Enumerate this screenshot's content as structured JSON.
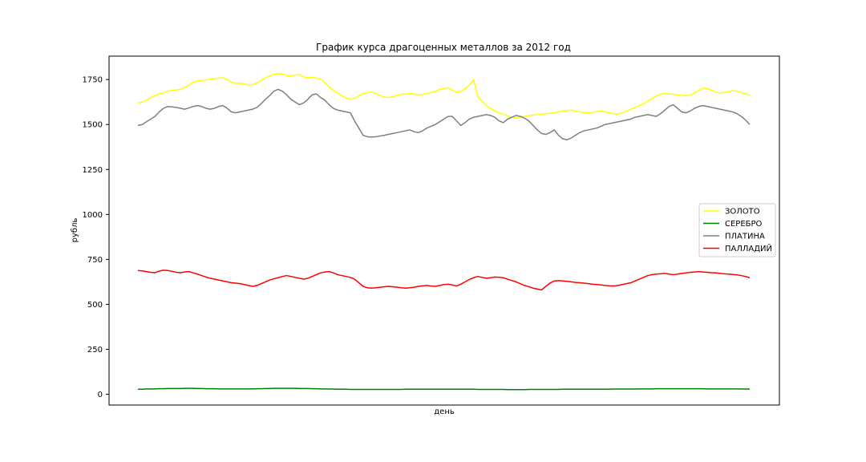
{
  "chart_data": {
    "type": "line",
    "title": "График курса драгоценных металлов за 2012 год",
    "xlabel": "день",
    "ylabel": "рубль",
    "ylim": [
      -60,
      1880
    ],
    "yticks": [
      0,
      250,
      500,
      750,
      1000,
      1250,
      1500,
      1750
    ],
    "xtick_labels_shown": false,
    "legend_placement": "center-right",
    "series": [
      {
        "name": "ЗОЛОТО",
        "color": "#ffff00",
        "values": [
          1620,
          1625,
          1635,
          1650,
          1660,
          1672,
          1675,
          1685,
          1690,
          1692,
          1695,
          1705,
          1720,
          1735,
          1742,
          1745,
          1748,
          1752,
          1755,
          1758,
          1760,
          1750,
          1735,
          1728,
          1730,
          1725,
          1720,
          1722,
          1730,
          1745,
          1760,
          1770,
          1780,
          1783,
          1780,
          1772,
          1770,
          1775,
          1778,
          1765,
          1760,
          1762,
          1758,
          1752,
          1735,
          1710,
          1690,
          1675,
          1660,
          1648,
          1640,
          1645,
          1660,
          1672,
          1678,
          1680,
          1672,
          1660,
          1652,
          1650,
          1655,
          1662,
          1668,
          1670,
          1672,
          1670,
          1665,
          1668,
          1672,
          1678,
          1685,
          1695,
          1700,
          1705,
          1690,
          1680,
          1685,
          1700,
          1720,
          1750,
          1655,
          1630,
          1605,
          1590,
          1575,
          1565,
          1558,
          1548,
          1540,
          1535,
          1538,
          1545,
          1550,
          1552,
          1555,
          1558,
          1560,
          1562,
          1565,
          1570,
          1575,
          1578,
          1580,
          1575,
          1570,
          1566,
          1565,
          1568,
          1572,
          1575,
          1570,
          1565,
          1560,
          1558,
          1565,
          1575,
          1585,
          1595,
          1605,
          1615,
          1630,
          1645,
          1658,
          1668,
          1672,
          1670,
          1668,
          1665,
          1662,
          1660,
          1665,
          1675,
          1690,
          1702,
          1700,
          1690,
          1680,
          1675,
          1678,
          1682,
          1688,
          1685,
          1678,
          1670,
          1665
        ]
      },
      {
        "name": "СЕРЕБРО",
        "color": "#008000",
        "values": [
          28,
          28,
          29,
          30,
          30,
          31,
          31,
          32,
          32,
          32,
          32,
          33,
          33,
          33,
          32,
          32,
          31,
          31,
          31,
          30,
          30,
          30,
          30,
          30,
          30,
          30,
          30,
          30,
          31,
          31,
          32,
          32,
          33,
          33,
          33,
          33,
          33,
          33,
          32,
          32,
          32,
          31,
          31,
          30,
          30,
          29,
          29,
          28,
          28,
          28,
          27,
          27,
          27,
          27,
          27,
          27,
          27,
          27,
          27,
          27,
          27,
          27,
          27,
          28,
          28,
          28,
          28,
          28,
          28,
          28,
          28,
          28,
          28,
          28,
          28,
          28,
          28,
          28,
          28,
          28,
          27,
          27,
          27,
          27,
          27,
          27,
          27,
          26,
          26,
          26,
          26,
          26,
          27,
          27,
          27,
          27,
          27,
          27,
          27,
          27,
          28,
          28,
          28,
          28,
          28,
          28,
          28,
          28,
          28,
          28,
          28,
          28,
          29,
          29,
          29,
          29,
          29,
          29,
          30,
          30,
          30,
          30,
          31,
          31,
          31,
          31,
          31,
          31,
          31,
          31,
          31,
          31,
          31,
          31,
          30,
          30,
          30,
          30,
          30,
          30,
          30,
          30,
          29,
          29,
          29
        ]
      },
      {
        "name": "ПЛАТИНА",
        "color": "#808080",
        "values": [
          1495,
          1500,
          1515,
          1530,
          1545,
          1570,
          1590,
          1600,
          1598,
          1595,
          1590,
          1585,
          1592,
          1600,
          1605,
          1600,
          1590,
          1585,
          1590,
          1600,
          1605,
          1590,
          1570,
          1565,
          1570,
          1575,
          1580,
          1585,
          1595,
          1615,
          1640,
          1660,
          1685,
          1695,
          1685,
          1665,
          1640,
          1625,
          1610,
          1620,
          1640,
          1665,
          1670,
          1650,
          1635,
          1610,
          1590,
          1580,
          1575,
          1570,
          1565,
          1520,
          1480,
          1440,
          1432,
          1430,
          1432,
          1436,
          1440,
          1445,
          1450,
          1455,
          1460,
          1465,
          1470,
          1460,
          1455,
          1465,
          1480,
          1490,
          1500,
          1515,
          1530,
          1545,
          1545,
          1520,
          1495,
          1510,
          1530,
          1540,
          1545,
          1550,
          1555,
          1550,
          1540,
          1520,
          1510,
          1530,
          1540,
          1550,
          1545,
          1535,
          1520,
          1495,
          1470,
          1450,
          1445,
          1455,
          1470,
          1440,
          1420,
          1415,
          1425,
          1440,
          1455,
          1465,
          1470,
          1475,
          1480,
          1490,
          1500,
          1505,
          1510,
          1515,
          1520,
          1525,
          1530,
          1540,
          1545,
          1550,
          1555,
          1550,
          1545,
          1560,
          1580,
          1600,
          1610,
          1590,
          1570,
          1565,
          1575,
          1590,
          1600,
          1605,
          1600,
          1595,
          1590,
          1585,
          1580,
          1575,
          1570,
          1560,
          1545,
          1525,
          1500
        ]
      },
      {
        "name": "ПАЛЛАДИЙ",
        "color": "#ff0000",
        "values": [
          688,
          686,
          682,
          678,
          676,
          685,
          690,
          688,
          684,
          678,
          676,
          680,
          682,
          675,
          668,
          660,
          652,
          645,
          640,
          635,
          630,
          625,
          620,
          618,
          615,
          610,
          605,
          600,
          605,
          615,
          625,
          635,
          642,
          648,
          655,
          660,
          655,
          650,
          645,
          640,
          645,
          655,
          665,
          675,
          680,
          682,
          675,
          665,
          660,
          655,
          650,
          640,
          620,
          600,
          592,
          590,
          592,
          595,
          598,
          600,
          598,
          595,
          592,
          590,
          592,
          595,
          600,
          603,
          605,
          602,
          600,
          605,
          610,
          612,
          608,
          602,
          612,
          625,
          638,
          648,
          655,
          650,
          645,
          648,
          652,
          650,
          648,
          640,
          632,
          625,
          615,
          605,
          598,
          590,
          585,
          580,
          600,
          618,
          630,
          632,
          630,
          628,
          625,
          622,
          620,
          618,
          615,
          612,
          610,
          608,
          605,
          603,
          602,
          605,
          610,
          615,
          620,
          630,
          640,
          650,
          660,
          665,
          668,
          670,
          672,
          668,
          665,
          668,
          672,
          675,
          678,
          680,
          682,
          680,
          678,
          676,
          675,
          672,
          670,
          668,
          666,
          664,
          660,
          655,
          648
        ]
      }
    ]
  }
}
